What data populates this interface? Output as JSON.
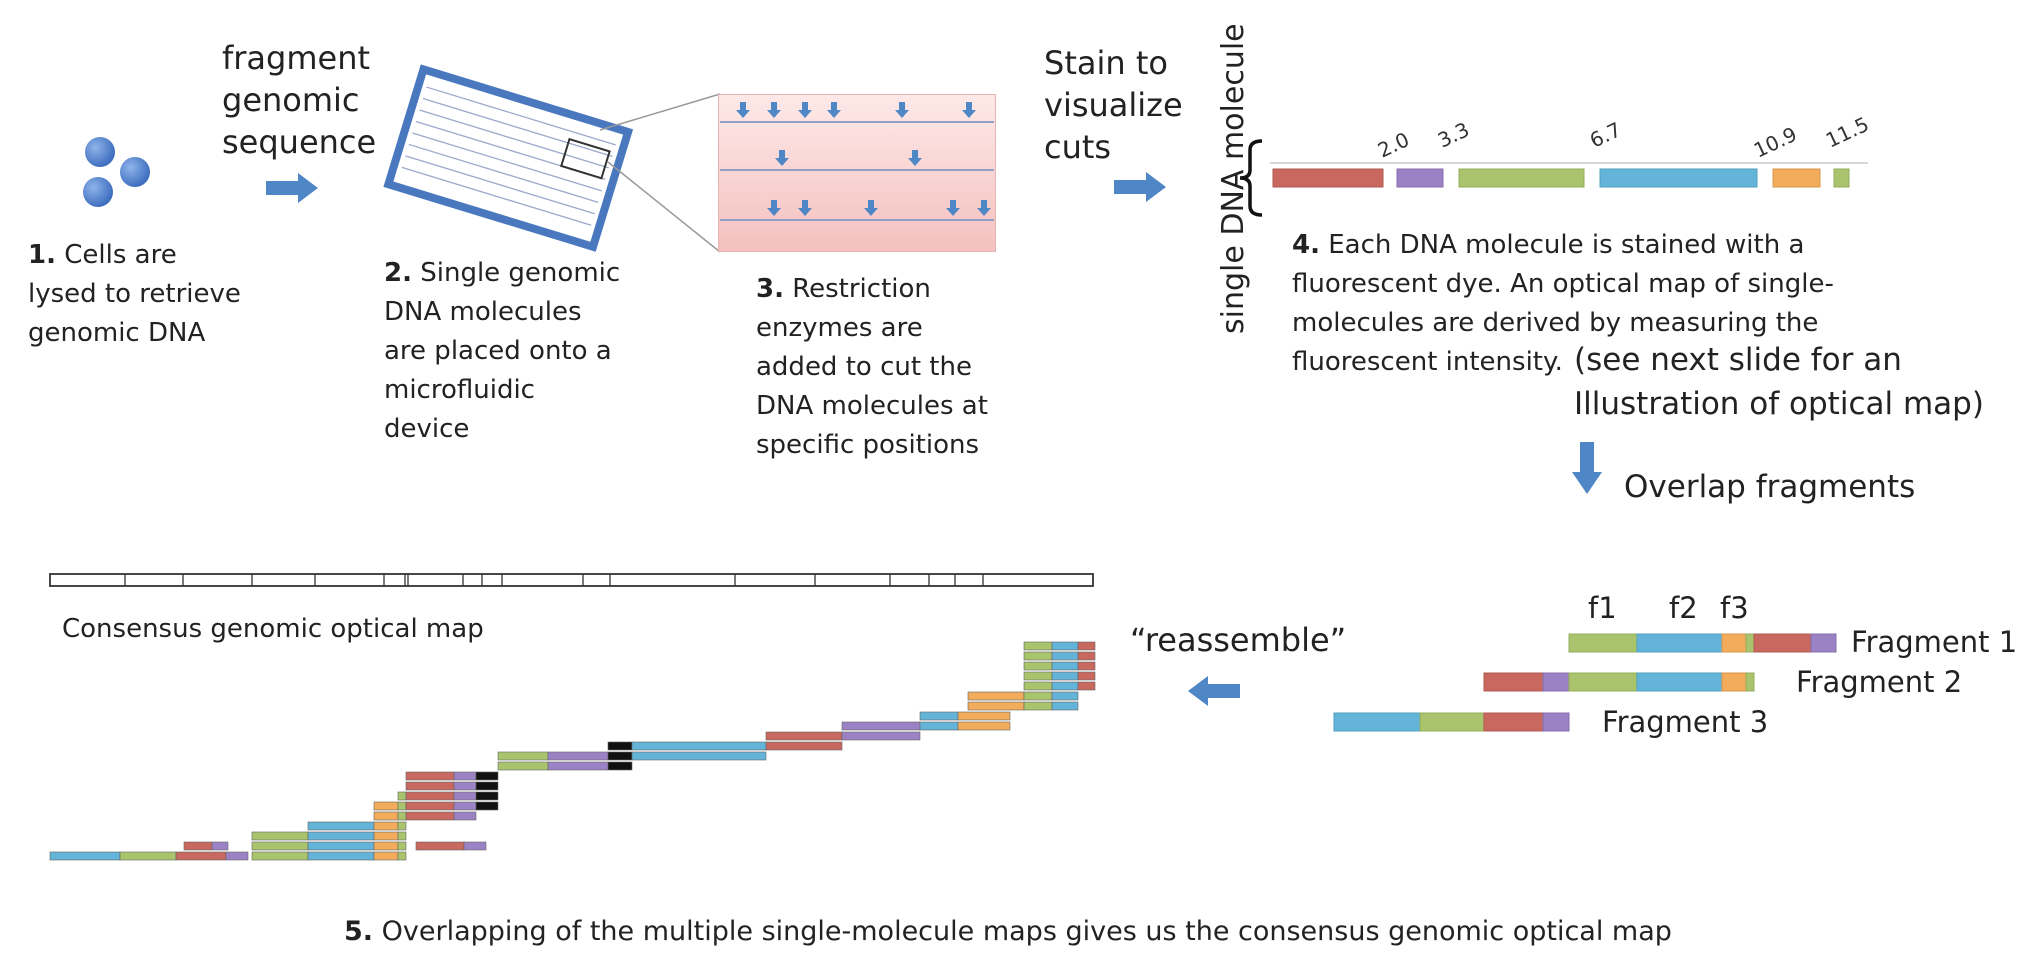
{
  "colors": {
    "red": "#c8685f",
    "purple": "#9b82c4",
    "green": "#a9c46d",
    "blue": "#63b4d8",
    "orange": "#f3ac5b",
    "black": "#111111",
    "arrow": "#4f86c6"
  },
  "icons": [
    "cells-icon",
    "right-arrow-icon",
    "down-arrow-icon",
    "left-arrow-icon",
    "microfluidic-device-icon",
    "bracket-icon"
  ],
  "step1": {
    "num": "1.",
    "lines": [
      "Cells are",
      "lysed to retrieve",
      "genomic DNA"
    ]
  },
  "fragment_label": [
    "fragment",
    "genomic",
    "sequence"
  ],
  "step2": {
    "num": "2.",
    "lines": [
      "Single genomic",
      "DNA molecules",
      "are placed onto a",
      "microfluidic",
      "device"
    ]
  },
  "step3": {
    "num": "3.",
    "lines": [
      "Restriction",
      "enzymes are",
      "added to cut the",
      "DNA molecules at",
      "specific positions"
    ]
  },
  "stain_label": [
    "Stain to",
    "visualize",
    "cuts"
  ],
  "vertical_label": "single DNA molecule",
  "cut_positions": [
    "2.0",
    "3.3",
    "6.7",
    "10.9",
    "11.5"
  ],
  "step4": {
    "num": "4.",
    "lines": [
      "Each DNA molecule is stained with a",
      "fluorescent dye. An optical map of single-",
      "molecules are derived by measuring the",
      "fluorescent intensity."
    ],
    "note_lines": [
      "(see next slide for an",
      "Illustration of optical map)"
    ]
  },
  "overlap_label": "Overlap fragments",
  "fragments": {
    "labels": [
      "Fragment 1",
      "Fragment 2",
      "Fragment 3"
    ],
    "markers": [
      "f1",
      "f2",
      "f3"
    ]
  },
  "reassemble_label": "“reassemble”",
  "consensus_label": "Consensus genomic optical map",
  "step5": {
    "num": "5.",
    "text": "Overlapping of the multiple single-molecule maps gives us the consensus genomic optical map"
  }
}
